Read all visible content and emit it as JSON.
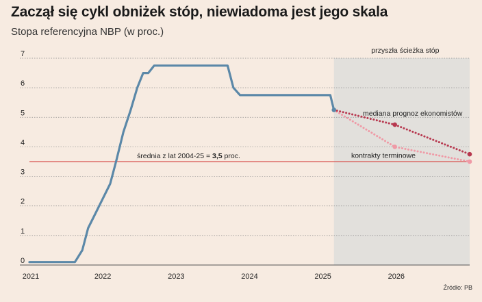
{
  "title": "Zaczął się cykl obniżek stóp, niewiadoma jest jego skala",
  "subtitle": "Stopa referencyjna NBP (w proc.)",
  "source": "Źródło: PB",
  "colors": {
    "background": "#f7ebe1",
    "forecast_shade": "#e2e0dc",
    "historical": "#5b88a8",
    "median": "#b7384f",
    "forwards": "#ef9aa6",
    "average": "#d9534f"
  },
  "chart_data": {
    "type": "line",
    "x_ticks": [
      "2021",
      "2022",
      "2023",
      "2024",
      "2025",
      "2026"
    ],
    "y_ticks": [
      "0",
      "1",
      "2",
      "3",
      "4",
      "5",
      "6",
      "7"
    ],
    "ylim": [
      0,
      7
    ],
    "xlim": [
      2021.0,
      2027.0
    ],
    "grid": true,
    "series": [
      {
        "name": "",
        "style": "solid",
        "points": [
          [
            2021.0,
            0.1
          ],
          [
            2021.62,
            0.1
          ],
          [
            2021.72,
            0.5
          ],
          [
            2021.8,
            1.25
          ],
          [
            2021.9,
            1.75
          ],
          [
            2022.0,
            2.25
          ],
          [
            2022.1,
            2.75
          ],
          [
            2022.18,
            3.5
          ],
          [
            2022.28,
            4.5
          ],
          [
            2022.38,
            5.25
          ],
          [
            2022.47,
            6.0
          ],
          [
            2022.55,
            6.5
          ],
          [
            2022.62,
            6.5
          ],
          [
            2022.7,
            6.75
          ],
          [
            2023.7,
            6.75
          ],
          [
            2023.78,
            6.0
          ],
          [
            2023.87,
            5.75
          ],
          [
            2025.1,
            5.75
          ],
          [
            2025.15,
            5.25
          ]
        ]
      },
      {
        "name": "mediana prognoz ekonomistów",
        "style": "dotted",
        "points": [
          [
            2025.15,
            5.25
          ],
          [
            2025.98,
            4.75
          ],
          [
            2027.0,
            3.75
          ]
        ]
      },
      {
        "name": "kontrakty terminowe",
        "style": "dotted",
        "points": [
          [
            2025.15,
            5.25
          ],
          [
            2025.98,
            4.0
          ],
          [
            2027.0,
            3.5
          ]
        ]
      }
    ],
    "average": {
      "value": 3.5,
      "label_prefix": "średnia z lat 2004-25 = ",
      "label_value": "3,5",
      "label_suffix": " proc."
    },
    "forecast_region": {
      "from": 2025.15,
      "to": 2027.0,
      "label": "przyszła ścieżka stóp"
    }
  }
}
